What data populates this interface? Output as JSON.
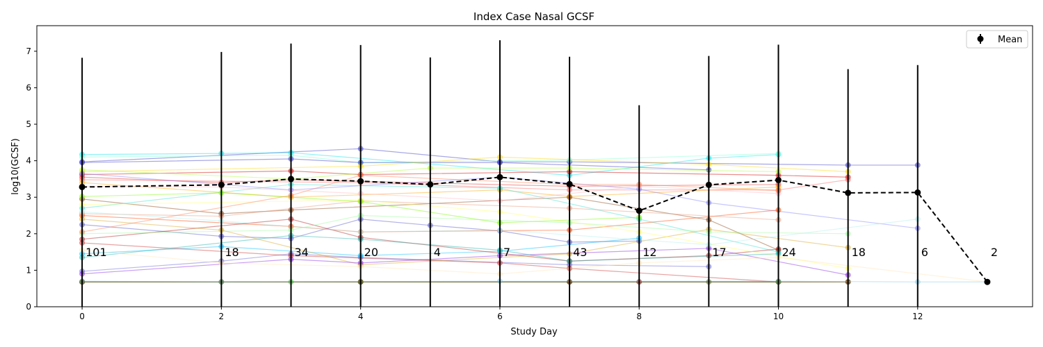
{
  "chart_data": {
    "type": "line",
    "title": "Index Case Nasal GCSF",
    "xlabel": "Study Day",
    "ylabel": "log10(GCSF)",
    "xlim": [
      -0.65,
      13.65
    ],
    "ylim": [
      0,
      7.7
    ],
    "xticks": [
      0,
      2,
      4,
      6,
      8,
      10,
      12
    ],
    "yticks": [
      0,
      1,
      2,
      3,
      4,
      5,
      6,
      7
    ],
    "grid": false,
    "legend": {
      "placement": "top-right",
      "entries": [
        {
          "label": "Mean",
          "color": "#000000"
        }
      ]
    },
    "mean_series": {
      "name": "Mean",
      "color": "#000000",
      "style": "dashed",
      "points": [
        {
          "x": 0,
          "y": 3.28,
          "err_low": 0,
          "err_high": 6.82,
          "n": "101"
        },
        {
          "x": 2,
          "y": 3.34,
          "err_low": 0,
          "err_high": 6.98,
          "n": "18"
        },
        {
          "x": 3,
          "y": 3.5,
          "err_low": 0,
          "err_high": 7.21,
          "n": "34"
        },
        {
          "x": 4,
          "y": 3.44,
          "err_low": 0,
          "err_high": 7.17,
          "n": "20"
        },
        {
          "x": 5,
          "y": 3.35,
          "err_low": 0,
          "err_high": 6.83,
          "n": "4"
        },
        {
          "x": 6,
          "y": 3.55,
          "err_low": 0,
          "err_high": 7.3,
          "n": "7"
        },
        {
          "x": 7,
          "y": 3.36,
          "err_low": 0,
          "err_high": 6.85,
          "n": "43"
        },
        {
          "x": 8,
          "y": 2.63,
          "err_low": 0,
          "err_high": 5.52,
          "n": "12"
        },
        {
          "x": 9,
          "y": 3.34,
          "err_low": 0,
          "err_high": 6.87,
          "n": "17"
        },
        {
          "x": 10,
          "y": 3.47,
          "err_low": 0,
          "err_high": 7.18,
          "n": "24"
        },
        {
          "x": 11,
          "y": 3.12,
          "err_low": 0,
          "err_high": 6.51,
          "n": "18"
        },
        {
          "x": 12,
          "y": 3.13,
          "err_low": 0,
          "err_high": 6.62,
          "n": "6"
        },
        {
          "x": 13,
          "y": 0.68,
          "err_low": 0,
          "err_high": 0,
          "n": "2"
        }
      ]
    },
    "individual_series": [
      {
        "color": "#3b3bc8",
        "points": [
          [
            0,
            3.97
          ],
          [
            4,
            4.33
          ],
          [
            6,
            3.97
          ],
          [
            7,
            3.97
          ],
          [
            11,
            3.88
          ],
          [
            12,
            3.88
          ]
        ]
      },
      {
        "color": "#00e5ee",
        "points": [
          [
            0,
            4.17
          ],
          [
            2,
            4.2
          ],
          [
            3,
            4.22
          ],
          [
            7,
            3.6
          ],
          [
            9,
            4.07
          ],
          [
            10,
            4.17
          ]
        ]
      },
      {
        "color": "#7fffd4",
        "points": [
          [
            0,
            4.1
          ],
          [
            3,
            4.15
          ],
          [
            4,
            3.95
          ],
          [
            7,
            4.02
          ],
          [
            10,
            4.2
          ]
        ]
      },
      {
        "color": "#3b3bc8",
        "points": [
          [
            0,
            3.95
          ],
          [
            3,
            4.05
          ],
          [
            4,
            3.95
          ],
          [
            6,
            3.95
          ],
          [
            9,
            3.75
          ]
        ]
      },
      {
        "color": "#d40000",
        "points": [
          [
            0,
            3.62
          ],
          [
            3,
            3.72
          ],
          [
            4,
            3.62
          ],
          [
            7,
            3.7
          ],
          [
            10,
            3.6
          ],
          [
            11,
            3.55
          ]
        ]
      },
      {
        "color": "#e03030",
        "points": [
          [
            0,
            3.55
          ],
          [
            2,
            3.4
          ],
          [
            3,
            3.48
          ],
          [
            7,
            3.3
          ],
          [
            10,
            3.35
          ]
        ]
      },
      {
        "color": "#ff6666",
        "points": [
          [
            0,
            3.48
          ],
          [
            4,
            3.4
          ],
          [
            7,
            3.2
          ],
          [
            10,
            3.2
          ],
          [
            11,
            3.48
          ]
        ]
      },
      {
        "color": "#ffa500",
        "points": [
          [
            0,
            3.4
          ],
          [
            3,
            3.0
          ],
          [
            6,
            3.2
          ],
          [
            7,
            3.02
          ],
          [
            10,
            3.28
          ]
        ]
      },
      {
        "color": "#ffd700",
        "points": [
          [
            0,
            3.7
          ],
          [
            4,
            3.85
          ],
          [
            6,
            4.1
          ],
          [
            9,
            3.9
          ],
          [
            11,
            3.7
          ]
        ]
      },
      {
        "color": "#adff2f",
        "points": [
          [
            0,
            3.75
          ],
          [
            3,
            3.5
          ],
          [
            5,
            3.8
          ],
          [
            7,
            3.8
          ],
          [
            10,
            3.7
          ]
        ]
      },
      {
        "color": "#8b4513",
        "points": [
          [
            0,
            2.95
          ],
          [
            2,
            2.55
          ],
          [
            3,
            2.65
          ],
          [
            7,
            3.0
          ],
          [
            9,
            2.38
          ],
          [
            10,
            1.55
          ]
        ]
      },
      {
        "color": "#5555cc",
        "points": [
          [
            0,
            2.25
          ],
          [
            2,
            1.93
          ],
          [
            3,
            1.87
          ],
          [
            4,
            2.4
          ],
          [
            5,
            2.23
          ],
          [
            6,
            2.08
          ],
          [
            7,
            1.77
          ],
          [
            8,
            1.8
          ]
        ]
      },
      {
        "color": "#6464d8",
        "points": [
          [
            0,
            0.97
          ],
          [
            2,
            1.25
          ],
          [
            3,
            1.45
          ],
          [
            4,
            1.35
          ],
          [
            7,
            1.15
          ],
          [
            9,
            1.1
          ]
        ]
      },
      {
        "color": "#8080ff",
        "points": [
          [
            0,
            3.65
          ],
          [
            3,
            3.2
          ],
          [
            6,
            3.55
          ],
          [
            8,
            3.22
          ],
          [
            9,
            2.85
          ],
          [
            12,
            2.15
          ]
        ]
      },
      {
        "color": "#00bfff",
        "points": [
          [
            0,
            1.45
          ],
          [
            2,
            1.65
          ],
          [
            4,
            1.4
          ],
          [
            6,
            1.52
          ],
          [
            8,
            1.88
          ]
        ]
      },
      {
        "color": "#40e0d0",
        "points": [
          [
            0,
            2.7
          ],
          [
            3,
            3.35
          ],
          [
            6,
            3.25
          ],
          [
            8,
            2.4
          ],
          [
            10,
            1.5
          ]
        ]
      },
      {
        "color": "#ff4500",
        "points": [
          [
            0,
            2.5
          ],
          [
            3,
            2.2
          ],
          [
            4,
            2.05
          ],
          [
            7,
            2.1
          ],
          [
            10,
            2.65
          ]
        ]
      },
      {
        "color": "#cc3333",
        "points": [
          [
            0,
            1.75
          ],
          [
            3,
            1.4
          ],
          [
            6,
            1.2
          ],
          [
            7,
            1.05
          ],
          [
            10,
            0.68
          ]
        ]
      },
      {
        "color": "#b22222",
        "points": [
          [
            0,
            1.85
          ],
          [
            3,
            2.4
          ],
          [
            4,
            1.9
          ],
          [
            7,
            1.25
          ],
          [
            9,
            1.4
          ],
          [
            10,
            1.58
          ]
        ]
      },
      {
        "color": "#e9967a",
        "points": [
          [
            0,
            2.55
          ],
          [
            2,
            2.48
          ],
          [
            4,
            2.9
          ],
          [
            7,
            2.7
          ],
          [
            10,
            2.38
          ]
        ]
      },
      {
        "color": "#daa520",
        "points": [
          [
            0,
            2.4
          ],
          [
            2,
            2.1
          ],
          [
            4,
            1.15
          ],
          [
            7,
            1.45
          ],
          [
            9,
            2.12
          ],
          [
            11,
            1.62
          ]
        ]
      },
      {
        "color": "#ffff66",
        "points": [
          [
            0,
            2.8
          ],
          [
            4,
            2.92
          ],
          [
            6,
            2.6
          ],
          [
            8,
            2.05
          ],
          [
            11,
            1.05
          ]
        ]
      },
      {
        "color": "#98fb98",
        "points": [
          [
            0,
            2.0
          ],
          [
            3,
            2.1
          ],
          [
            4,
            2.5
          ],
          [
            7,
            2.3
          ],
          [
            9,
            2.05
          ],
          [
            11,
            2.0
          ]
        ]
      },
      {
        "color": "#7cfc00",
        "points": [
          [
            0,
            3.02
          ],
          [
            2,
            3.12
          ],
          [
            4,
            2.88
          ],
          [
            6,
            2.3
          ],
          [
            8,
            2.45
          ]
        ]
      },
      {
        "color": "#32cd32",
        "points": [
          [
            0,
            0.68
          ],
          [
            3,
            0.68
          ],
          [
            4,
            0.68
          ],
          [
            7,
            0.68
          ],
          [
            10,
            0.68
          ],
          [
            11,
            0.68
          ]
        ]
      },
      {
        "color": "#800000",
        "points": [
          [
            0,
            0.68
          ],
          [
            4,
            0.68
          ],
          [
            7,
            0.68
          ],
          [
            8,
            0.68
          ],
          [
            11,
            0.68
          ]
        ]
      },
      {
        "color": "#87ceeb",
        "points": [
          [
            0,
            0.7
          ],
          [
            2,
            0.68
          ],
          [
            6,
            0.7
          ],
          [
            10,
            0.7
          ],
          [
            12,
            0.68
          ],
          [
            13,
            0.68
          ]
        ]
      },
      {
        "color": "#556b2f",
        "points": [
          [
            0,
            0.68
          ],
          [
            2,
            0.68
          ],
          [
            4,
            0.68
          ],
          [
            9,
            0.68
          ],
          [
            10,
            0.68
          ]
        ]
      },
      {
        "color": "#ffb6c1",
        "points": [
          [
            0,
            3.3
          ],
          [
            2,
            3.28
          ],
          [
            4,
            3.1
          ],
          [
            6,
            2.9
          ],
          [
            8,
            3.3
          ],
          [
            10,
            3.1
          ]
        ]
      },
      {
        "color": "#8a2be2",
        "points": [
          [
            0,
            0.9
          ],
          [
            3,
            1.3
          ],
          [
            4,
            1.2
          ],
          [
            6,
            1.4
          ],
          [
            9,
            1.6
          ],
          [
            11,
            0.87
          ]
        ]
      },
      {
        "color": "#ff7f50",
        "points": [
          [
            0,
            2.05
          ],
          [
            3,
            3.05
          ],
          [
            4,
            3.6
          ],
          [
            7,
            3.35
          ],
          [
            8,
            3.35
          ],
          [
            10,
            3.18
          ]
        ]
      },
      {
        "color": "#afeeee",
        "points": [
          [
            0,
            2.6
          ],
          [
            2,
            2.35
          ],
          [
            4,
            2.05
          ],
          [
            6,
            2.1
          ],
          [
            9,
            1.7
          ],
          [
            12,
            2.4
          ]
        ]
      },
      {
        "color": "#20b2aa",
        "points": [
          [
            0,
            1.35
          ],
          [
            3,
            1.95
          ],
          [
            4,
            1.85
          ],
          [
            6,
            1.55
          ],
          [
            7,
            1.25
          ],
          [
            10,
            1.45
          ]
        ]
      },
      {
        "color": "#ffe4b5",
        "points": [
          [
            0,
            1.55
          ],
          [
            2,
            1.2
          ],
          [
            4,
            1.1
          ],
          [
            6,
            0.9
          ],
          [
            8,
            1.2
          ],
          [
            10,
            1.35
          ],
          [
            13,
            0.68
          ]
        ]
      }
    ]
  }
}
